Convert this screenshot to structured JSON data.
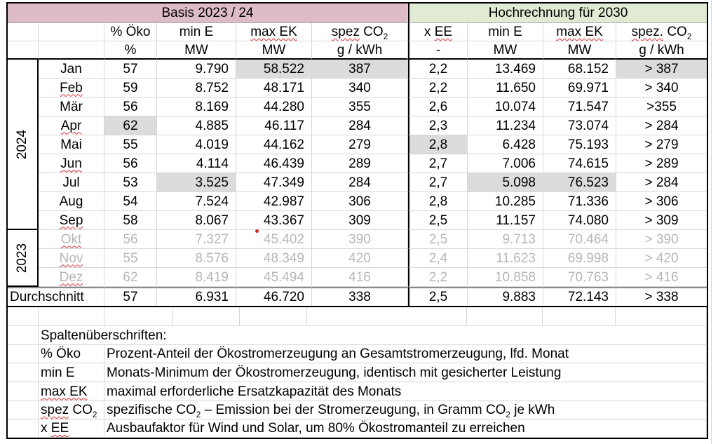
{
  "titles": {
    "basis": "Basis 2023 / 24",
    "hochrechnung": "Hochrechnung für 2030"
  },
  "columns": [
    {
      "pre": "% Öko",
      "unit": "%"
    },
    {
      "pre": "min E",
      "unit": "MW"
    },
    {
      "wav": "max EK",
      "unit": "MW"
    },
    {
      "wav": "spez",
      "post": " CO₂",
      "unit": "g / kWh"
    },
    {
      "pre": "x ",
      "wav": "EE",
      "unit": "-"
    },
    {
      "pre": "min E",
      "unit": "MW"
    },
    {
      "wav": "max EK",
      "unit": "MW"
    },
    {
      "wav": "spez.",
      "post": " CO₂",
      "unit": "g / kWh"
    }
  ],
  "year_groups": [
    {
      "label": "2024"
    },
    {
      "label": "2023"
    }
  ],
  "rows": [
    {
      "month": "Jan",
      "wavy": false,
      "dim": false,
      "values": [
        "57",
        "9.790",
        "58.522",
        "387",
        "2,2",
        "13.469",
        "68.152",
        "> 387"
      ],
      "hl": [
        2,
        3,
        7
      ]
    },
    {
      "month": "Feb",
      "wavy": true,
      "dim": false,
      "values": [
        "59",
        "8.752",
        "48.171",
        "340",
        "2,2",
        "11.650",
        "69.971",
        "> 340"
      ],
      "hl": []
    },
    {
      "month": "Mär",
      "wavy": false,
      "dim": false,
      "values": [
        "56",
        "8.169",
        "44.280",
        "355",
        "2,6",
        "10.074",
        "71.547",
        ">355"
      ],
      "hl": []
    },
    {
      "month": "Apr",
      "wavy": true,
      "dim": false,
      "values": [
        "62",
        "4.885",
        "46.117",
        "284",
        "2,3",
        "11.234",
        "73.074",
        "> 284"
      ],
      "hl": [
        0
      ]
    },
    {
      "month": "Mai",
      "wavy": false,
      "dim": false,
      "values": [
        "55",
        "4.019",
        "44.162",
        "279",
        "2,8",
        "6.428",
        "75.193",
        "> 279"
      ],
      "hl": [
        4
      ]
    },
    {
      "month": "Jun",
      "wavy": true,
      "dim": false,
      "values": [
        "56",
        "4.114",
        "46.439",
        "289",
        "2,7",
        "7.006",
        "74.615",
        "> 289"
      ],
      "hl": []
    },
    {
      "month": "Jul",
      "wavy": false,
      "dim": false,
      "values": [
        "53",
        "3.525",
        "47.349",
        "284",
        "2,7",
        "5.098",
        "76.523",
        "> 284"
      ],
      "hl": [
        1,
        5,
        6
      ]
    },
    {
      "month": "Aug",
      "wavy": false,
      "dim": false,
      "values": [
        "54",
        "7.524",
        "42.987",
        "306",
        "2,8",
        "10.285",
        "71.336",
        "> 306"
      ],
      "hl": []
    },
    {
      "month": "Sep",
      "wavy": true,
      "dim": false,
      "values": [
        "58",
        "8.067",
        "43.367",
        "309",
        "2,5",
        "11.157",
        "74.080",
        "> 309"
      ],
      "hl": []
    },
    {
      "month": "Okt",
      "wavy": true,
      "dim": true,
      "values": [
        "56",
        "7.327",
        "45.402",
        "390",
        "2,5",
        "9.713",
        "70.464",
        "> 390"
      ],
      "hl": []
    },
    {
      "month": "Nov",
      "wavy": true,
      "dim": true,
      "values": [
        "55",
        "8.576",
        "48.349",
        "420",
        "2,4",
        "11.623",
        "69.998",
        "> 420"
      ],
      "hl": []
    },
    {
      "month": "Dez",
      "wavy": true,
      "dim": true,
      "values": [
        "62",
        "8.419",
        "45.494",
        "416",
        "2,2",
        "10.858",
        "70.763",
        "> 416"
      ],
      "hl": []
    }
  ],
  "summary": {
    "label": "Durchschnitt",
    "values": [
      "57",
      "6.931",
      "46.720",
      "338",
      "2,5",
      "9.883",
      "72.143",
      "> 338"
    ]
  },
  "legend": {
    "heading": "Spaltenüberschriften:",
    "items": [
      {
        "pre": "% Öko",
        "desc": "Prozent-Anteil der Ökostromerzeugung an Gesamtstromerzeugung, lfd. Monat"
      },
      {
        "pre": "min E",
        "desc": "Monats-Minimum der Ökostromerzeugung, identisch mit gesicherter Leistung"
      },
      {
        "wav": "max EK",
        "desc": "maximal erforderliche Ersatzkapazität des Monats"
      },
      {
        "wav": "spez",
        "post": " CO₂",
        "desc": "spezifische CO₂ – Emission bei der Stromerzeugung, in Gramm CO₂ je kWh"
      },
      {
        "pre": "x ",
        "wav": "EE",
        "desc": "Ausbaufaktor für Wind und Solar, um 80% Ökostromanteil zu erreichen"
      }
    ]
  },
  "colors": {
    "pink_header": "#ddbcc8",
    "green_header": "#e1ebd3",
    "highlight_gray": "#dcdcdc",
    "dim_text": "#b6b6b6",
    "squiggle_red": "#e03030",
    "red_marker": "#cc2a1e"
  }
}
